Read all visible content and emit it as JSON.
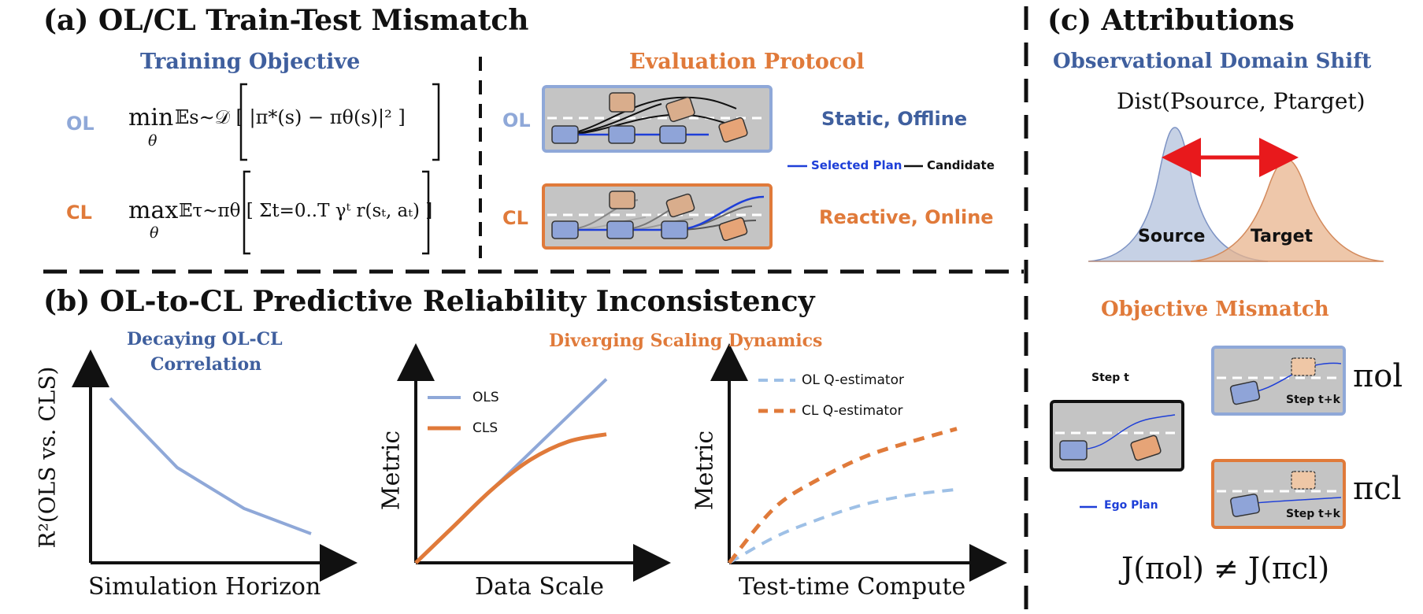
{
  "panel_a": {
    "title": "(a) OL/CL Train-Test Mismatch",
    "training_objective": "Training Objective",
    "evaluation_protocol": "Evaluation Protocol",
    "ol_tag": "OL",
    "cl_tag": "CL",
    "ol_eval_tag": "OL",
    "cl_eval_tag": "CL",
    "ol_formula_op": "min",
    "ol_formula_sub": "θ",
    "ol_formula_body": "𝔼s∼𝒟 [ |π*(s) − πθ(s)|² ]",
    "cl_formula_op": "max",
    "cl_formula_sub": "θ",
    "cl_formula_body": "𝔼τ∼πθ [ Σt=0..T γᵗ r(sₜ, aₜ) ]",
    "ol_eval_desc": "Static, Offline",
    "cl_eval_desc": "Reactive, Online",
    "legend_selected": "Selected Plan",
    "legend_candidate": "Candidate"
  },
  "panel_b": {
    "title": "(b) OL-to-CL Predictive Reliability Inconsistency",
    "left_title_line1": "Decaying OL-CL",
    "left_title_line2": "Correlation",
    "right_title": "Diverging Scaling Dynamics",
    "chart1_ylabel": "R²(OLS vs. CLS)",
    "chart1_xlabel": "Simulation Horizon",
    "chart2_ylabel": "Metric",
    "chart2_xlabel": "Data Scale",
    "chart3_ylabel": "Metric",
    "chart3_xlabel": "Test-time Compute",
    "legend_ols": "OLS",
    "legend_cls": "CLS",
    "legend_ol_q": "OL Q-estimator",
    "legend_cl_q": "CL Q-estimator"
  },
  "panel_c": {
    "title": "(c) Attributions",
    "shift_title": "Observational Domain Shift",
    "dist_formula": "Dist(Psource, Ptarget)",
    "source_label": "Source",
    "target_label": "Target",
    "mismatch_title": "Objective Mismatch",
    "step_t": "Step t",
    "step_tk_1": "Step t+k",
    "step_tk_2": "Step t+k",
    "ego_plan": "Ego Plan",
    "pi_ol": "πol",
    "pi_cl": "πcl",
    "j_formula": "J(πol) ≠ J(πcl)"
  },
  "colors": {
    "blue": "#3f5f9e",
    "light_blue": "#8fa8d8",
    "orange": "#e07a3a",
    "red": "#e8191c",
    "road": "#c4c4c4"
  },
  "chart_data": [
    {
      "type": "line",
      "title": "Decaying OL-CL Correlation",
      "xlabel": "Simulation Horizon",
      "ylabel": "R²(OLS vs. CLS)",
      "x": [
        1,
        2,
        3,
        4
      ],
      "series": [
        {
          "name": "R²",
          "values": [
            0.92,
            0.48,
            0.22,
            0.06
          ]
        }
      ],
      "ylim": [
        0,
        1
      ]
    },
    {
      "type": "line",
      "title": "Diverging Scaling Dynamics",
      "xlabel": "Data Scale",
      "ylabel": "Metric",
      "x": [
        0,
        1,
        2,
        3,
        4,
        5
      ],
      "series": [
        {
          "name": "OLS",
          "values": [
            0.0,
            0.2,
            0.4,
            0.6,
            0.8,
            1.0
          ]
        },
        {
          "name": "CLS",
          "values": [
            0.0,
            0.2,
            0.4,
            0.56,
            0.66,
            0.7
          ]
        }
      ],
      "ylim": [
        0,
        1.05
      ]
    },
    {
      "type": "line",
      "title": "Diverging Scaling Dynamics",
      "xlabel": "Test-time Compute",
      "ylabel": "Metric",
      "x": [
        0,
        1,
        2,
        3,
        4,
        5
      ],
      "series": [
        {
          "name": "OL Q-estimator",
          "values": [
            0.0,
            0.14,
            0.24,
            0.32,
            0.37,
            0.4
          ]
        },
        {
          "name": "CL Q-estimator",
          "values": [
            0.0,
            0.3,
            0.46,
            0.58,
            0.66,
            0.73
          ]
        }
      ],
      "ylim": [
        0,
        1.05
      ]
    }
  ]
}
